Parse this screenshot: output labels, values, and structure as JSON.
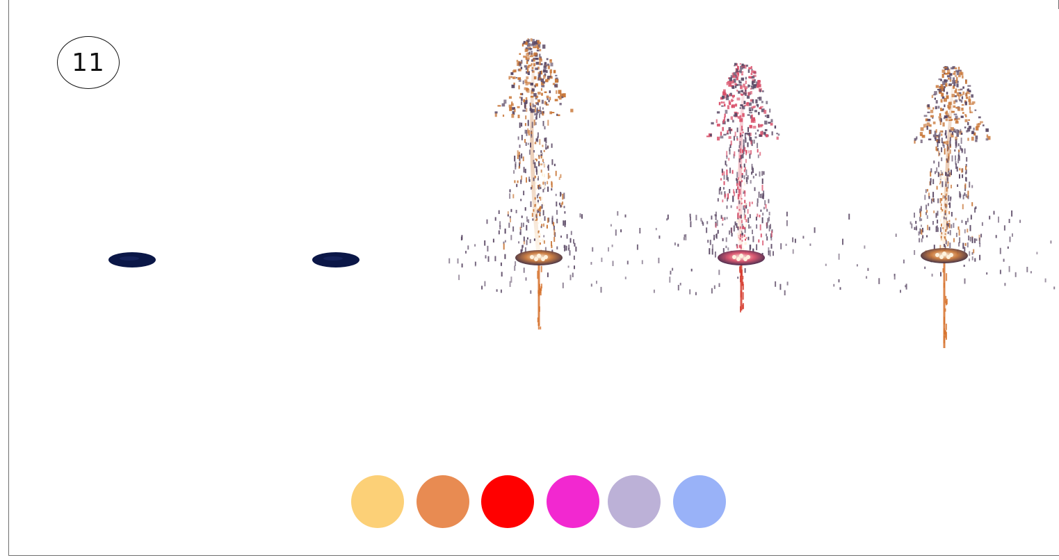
{
  "step": {
    "number": "11"
  },
  "colors": {
    "panel_border": "#6e6e6e",
    "disc_dark": "#0b1747",
    "spark_orange": "#c9783a",
    "spark_pink": "#d9506a",
    "spark_purple": "#5c4a66",
    "trail_orange": "#d6712b",
    "trail_red": "#d63a2c"
  },
  "fountains": [
    {
      "name": "fountain-1",
      "state": "idle",
      "tint": "#0b1747"
    },
    {
      "name": "fountain-2",
      "state": "idle",
      "tint": "#0b1747"
    },
    {
      "name": "fountain-3",
      "state": "active",
      "tint": "#c9783a"
    },
    {
      "name": "fountain-4",
      "state": "active",
      "tint": "#d9506a"
    },
    {
      "name": "fountain-5",
      "state": "active",
      "tint": "#c9783a"
    }
  ],
  "palette": {
    "swatches": [
      {
        "name": "swatch-light-orange",
        "color": "#fcd077"
      },
      {
        "name": "swatch-orange",
        "color": "#e88b52"
      },
      {
        "name": "swatch-red",
        "color": "#ff0000"
      },
      {
        "name": "swatch-magenta",
        "color": "#f228d0"
      },
      {
        "name": "swatch-lavender",
        "color": "#bcb1d7"
      },
      {
        "name": "swatch-periwinkle",
        "color": "#99b2f8"
      }
    ]
  }
}
